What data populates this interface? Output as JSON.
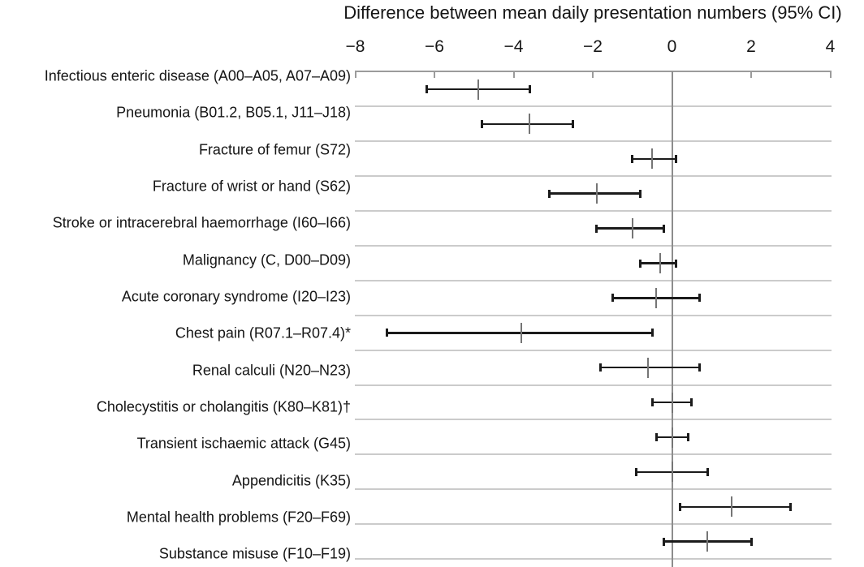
{
  "chart_data": {
    "type": "scatter",
    "subtype": "horizontal-forest-plot-with-95CI-error-bars",
    "title": "Difference between mean daily presentation numbers (95% CI)",
    "xlim": [
      -8,
      4
    ],
    "xticks": [
      -8,
      -6,
      -4,
      -2,
      0,
      2,
      4
    ],
    "xtick_labels": [
      "−8",
      "−6",
      "−4",
      "−2",
      "0",
      "2",
      "4"
    ],
    "legend": "none",
    "grid": "light horizontal separator line under each category row; vertical reference line at 0",
    "zero_reference": 0,
    "rows": [
      {
        "label": "Infectious enteric disease (A00–A05, A07–A09)",
        "mean": -4.9,
        "ci_low": -6.2,
        "ci_high": -3.6
      },
      {
        "label": "Pneumonia (B01.2, B05.1, J11–J18)",
        "mean": -3.6,
        "ci_low": -4.8,
        "ci_high": -2.5
      },
      {
        "label": "Fracture of femur (S72)",
        "mean": -0.5,
        "ci_low": -1.0,
        "ci_high": 0.1
      },
      {
        "label": "Fracture of wrist or hand (S62)",
        "mean": -1.9,
        "ci_low": -3.1,
        "ci_high": -0.8
      },
      {
        "label": "Stroke or intracerebral haemorrhage (I60–I66)",
        "mean": -1.0,
        "ci_low": -1.9,
        "ci_high": -0.2
      },
      {
        "label": "Malignancy (C, D00–D09)",
        "mean": -0.3,
        "ci_low": -0.8,
        "ci_high": 0.1
      },
      {
        "label": "Acute coronary syndrome (I20–I23)",
        "mean": -0.4,
        "ci_low": -1.5,
        "ci_high": 0.7
      },
      {
        "label": "Chest pain (R07.1–R07.4)*",
        "mean": -3.8,
        "ci_low": -7.2,
        "ci_high": -0.5
      },
      {
        "label": "Renal calculi (N20–N23)",
        "mean": -0.6,
        "ci_low": -1.8,
        "ci_high": 0.7
      },
      {
        "label": "Cholecystitis or cholangitis (K80–K81)†",
        "mean": 0.0,
        "ci_low": -0.5,
        "ci_high": 0.5
      },
      {
        "label": "Transient ischaemic attack (G45)",
        "mean": 0.0,
        "ci_low": -0.4,
        "ci_high": 0.4
      },
      {
        "label": "Appendicitis (K35)",
        "mean": 0.0,
        "ci_low": -0.9,
        "ci_high": 0.9
      },
      {
        "label": "Mental health problems (F20–F69)",
        "mean": 1.5,
        "ci_low": 0.2,
        "ci_high": 3.0
      },
      {
        "label": "Substance misuse (F10–F19)",
        "mean": 0.9,
        "ci_low": -0.2,
        "ci_high": 2.0
      }
    ],
    "colors": {
      "background": "#ffffff",
      "text": "#151515",
      "axis_line": "#9b9b9b",
      "row_gridline": "#cbcbcb",
      "zero_line": "#8d8d8d",
      "ci_bar": "#1b1b1b",
      "mean_tick": "#757575"
    }
  }
}
